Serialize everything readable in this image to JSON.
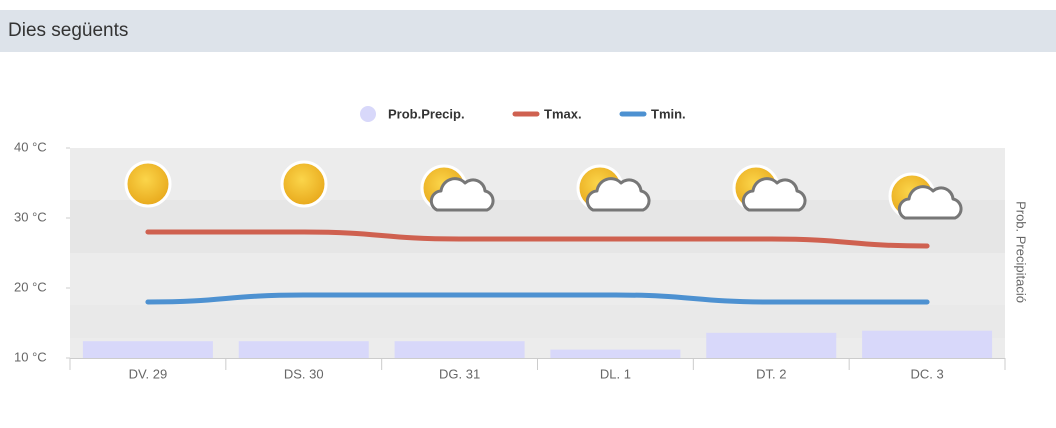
{
  "header": {
    "title": "Dies següents"
  },
  "chart_data": {
    "type": "line",
    "categories": [
      "DV. 29",
      "DS. 30",
      "DG. 31",
      "DL. 1",
      "DT. 2",
      "DC. 3"
    ],
    "series": [
      {
        "name": "Prob.Precip.",
        "color": "#d8d8fa",
        "axis": "y2",
        "kind": "bar",
        "values": [
          8,
          8,
          8,
          4,
          12,
          13
        ]
      },
      {
        "name": "Tmax.",
        "color": "#cf6150",
        "kind": "line",
        "values": [
          28,
          28,
          27,
          27,
          27,
          26
        ]
      },
      {
        "name": "Tmin.",
        "color": "#4d91d1",
        "kind": "line",
        "values": [
          18,
          19,
          19,
          19,
          18,
          18
        ]
      }
    ],
    "ylim": [
      10,
      40
    ],
    "yticks": [
      {
        "value": 40,
        "label": "40 °C"
      },
      {
        "value": 30,
        "label": "30 °C"
      },
      {
        "value": 20,
        "label": "20 °C"
      },
      {
        "value": 10,
        "label": "10 °C"
      }
    ],
    "y2lim": [
      0,
      100
    ],
    "y2label": "Prob. Precipitació",
    "legend": "top"
  }
}
